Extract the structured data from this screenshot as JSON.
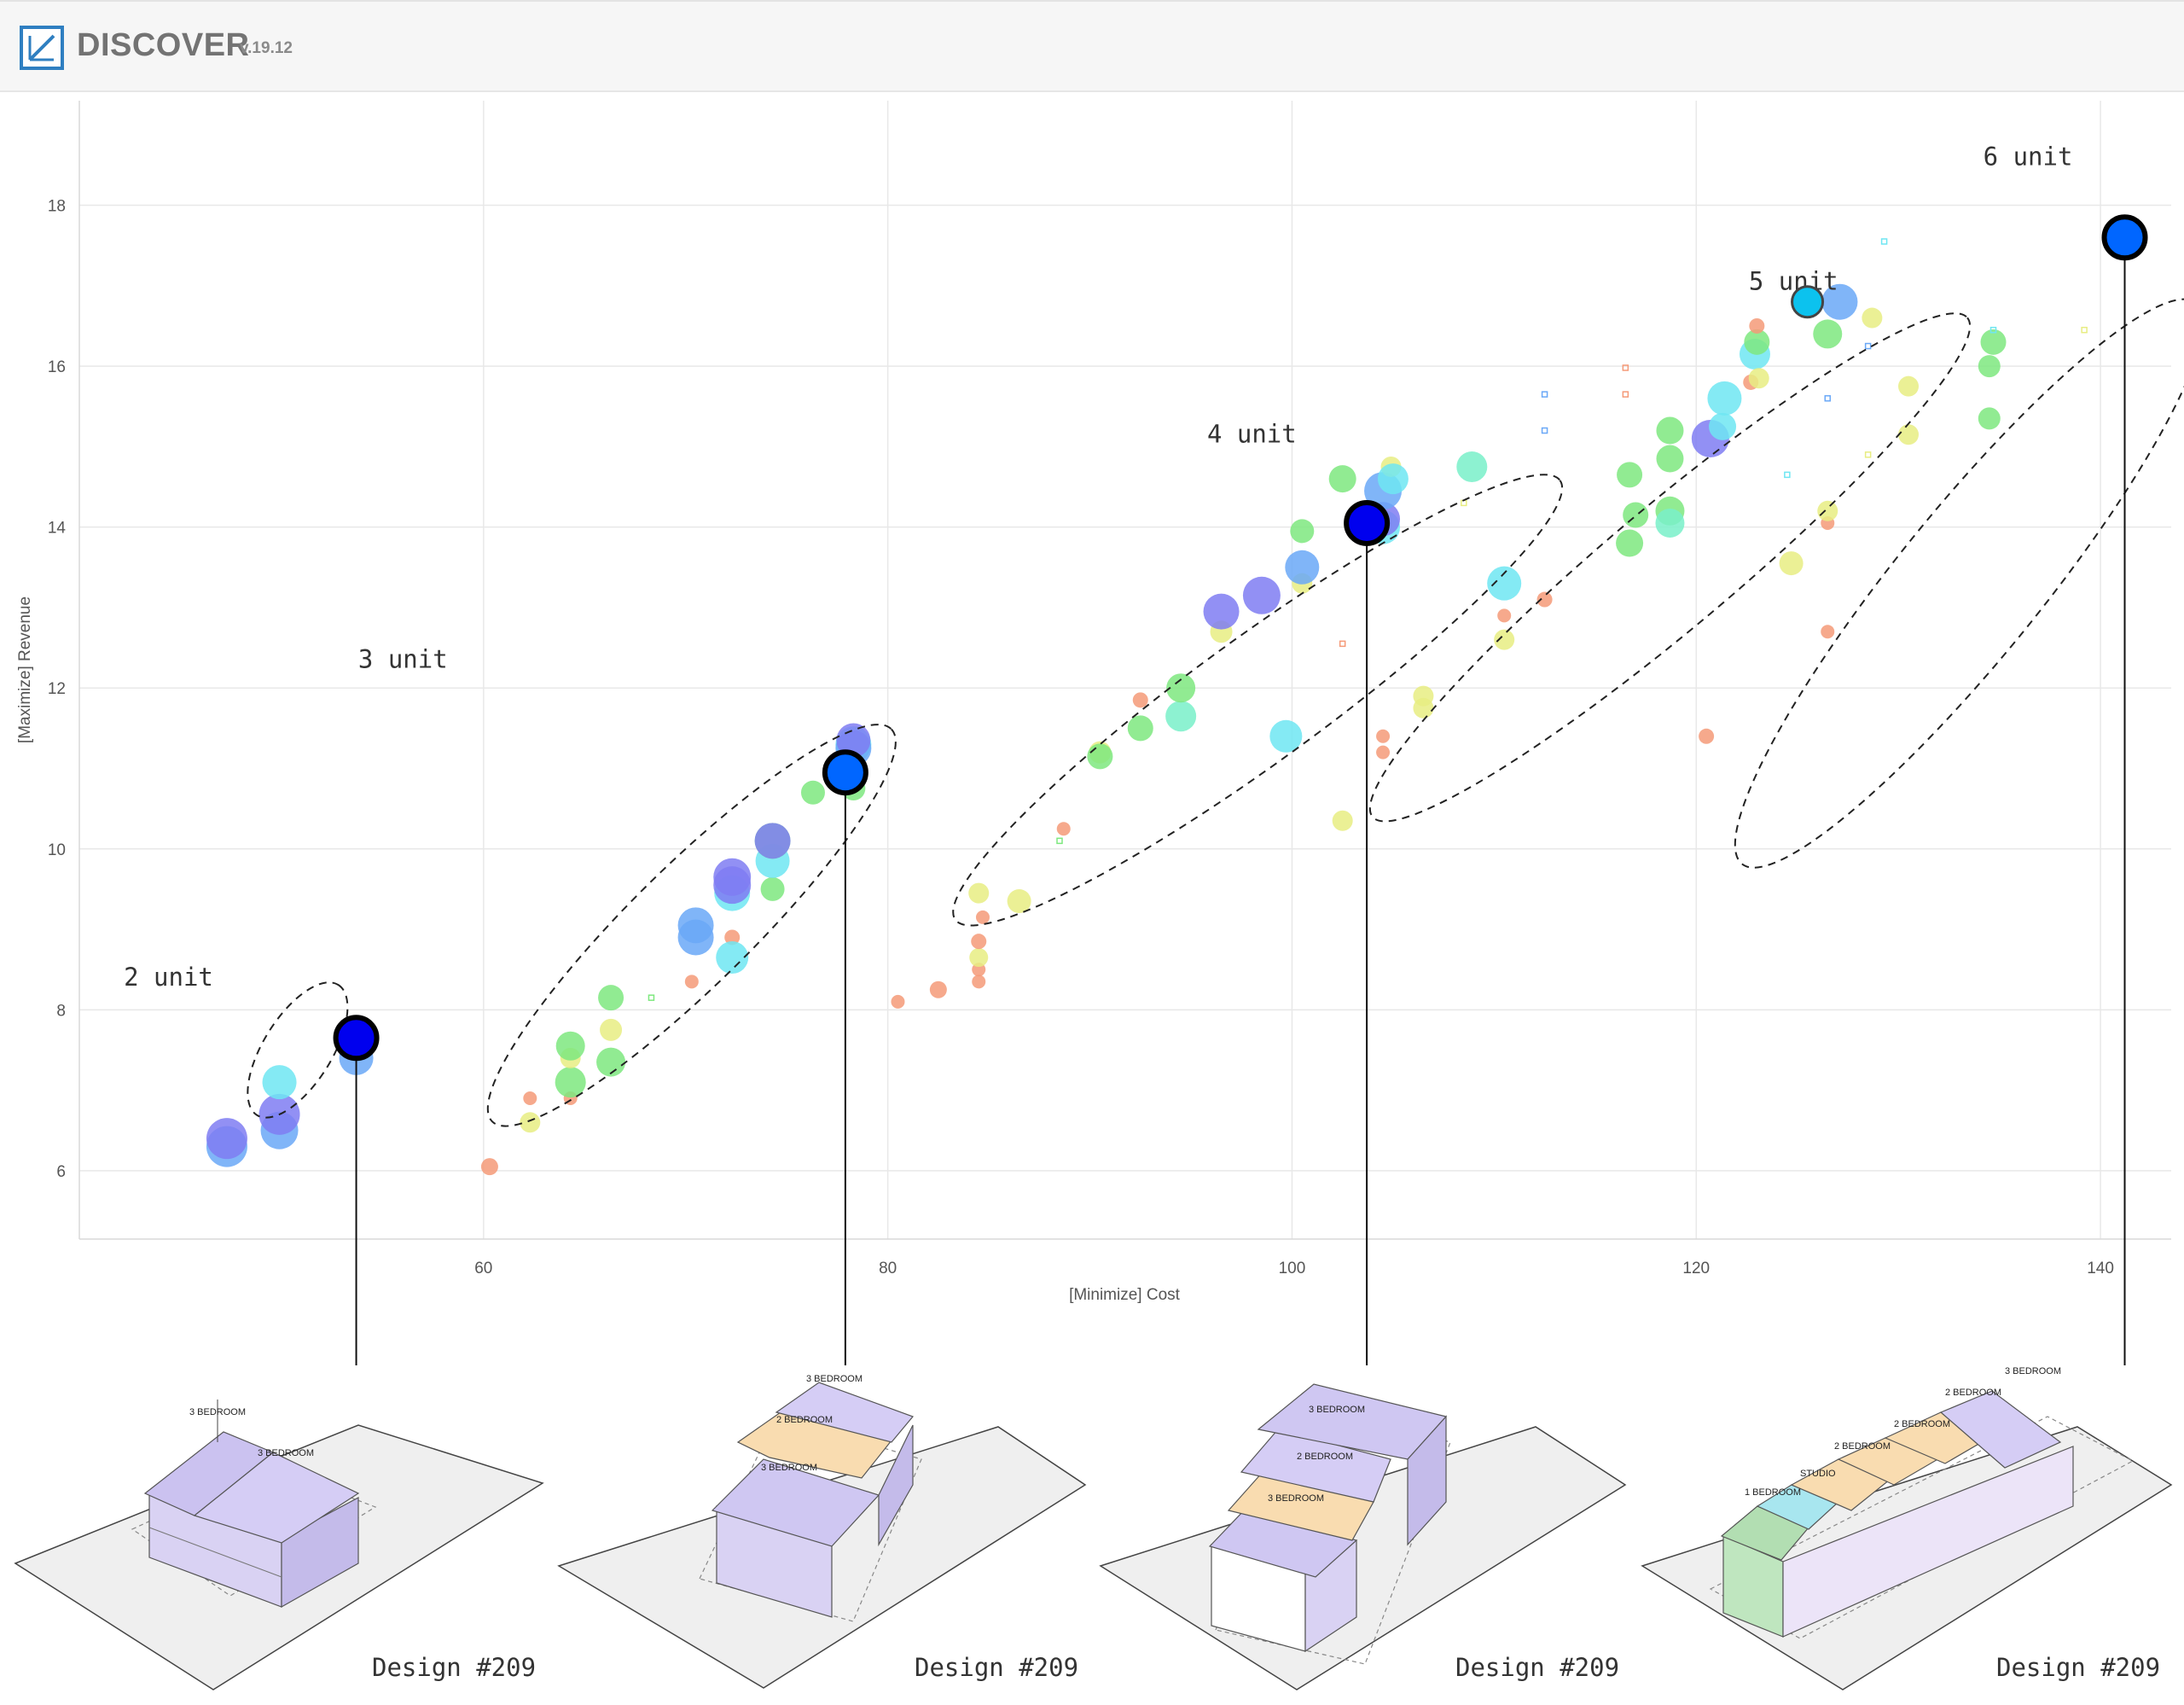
{
  "app": {
    "name": "DISCOVER",
    "version": "v.19.12"
  },
  "chart_data": {
    "type": "scatter",
    "title": "",
    "xlabel": "[Minimize] Cost",
    "ylabel": "[Maximize] Revenue",
    "xlim": [
      40,
      143.5
    ],
    "ylim": [
      5.15,
      19.3
    ],
    "x_ticks": [
      60,
      80,
      100,
      120,
      140
    ],
    "y_ticks": [
      6,
      8,
      10,
      12,
      14,
      16,
      18
    ],
    "grid": true,
    "colors": {
      "orange": "#f59a78",
      "yellow": "#e8ed82",
      "green": "#7ee87f",
      "mint": "#79f0c9",
      "cyan": "#6fe6f2",
      "blue": "#6aa8f7",
      "purple": "#7f7cf2",
      "selected_blue": "#0000ee",
      "selected_azure": "#0066ff",
      "selected_cyan": "#0cc2ee"
    },
    "points": [
      {
        "x": 47.3,
        "y": 6.3,
        "size": 24,
        "color": "blue"
      },
      {
        "x": 47.3,
        "y": 6.4,
        "size": 24,
        "color": "purple"
      },
      {
        "x": 49.9,
        "y": 6.5,
        "size": 22,
        "color": "blue"
      },
      {
        "x": 49.9,
        "y": 6.7,
        "size": 24,
        "color": "purple"
      },
      {
        "x": 49.9,
        "y": 7.1,
        "size": 20,
        "color": "cyan"
      },
      {
        "x": 53.7,
        "y": 7.4,
        "size": 20,
        "color": "blue"
      },
      {
        "x": 60.3,
        "y": 6.05,
        "size": 10,
        "color": "orange"
      },
      {
        "x": 62.3,
        "y": 6.6,
        "size": 12,
        "color": "yellow"
      },
      {
        "x": 62.3,
        "y": 6.9,
        "size": 8,
        "color": "orange"
      },
      {
        "x": 64.3,
        "y": 6.9,
        "size": 8,
        "color": "orange"
      },
      {
        "x": 64.3,
        "y": 7.1,
        "size": 18,
        "color": "green"
      },
      {
        "x": 64.3,
        "y": 7.4,
        "size": 12,
        "color": "yellow"
      },
      {
        "x": 64.3,
        "y": 7.55,
        "size": 17,
        "color": "green"
      },
      {
        "x": 66.3,
        "y": 7.35,
        "size": 17,
        "color": "green"
      },
      {
        "x": 66.3,
        "y": 7.75,
        "size": 13,
        "color": "yellow"
      },
      {
        "x": 66.3,
        "y": 8.15,
        "size": 15,
        "color": "green"
      },
      {
        "x": 68.3,
        "y": 8.15,
        "size": 6,
        "color": "green",
        "shape": "square"
      },
      {
        "x": 70.3,
        "y": 8.35,
        "size": 8,
        "color": "orange"
      },
      {
        "x": 70.5,
        "y": 8.9,
        "size": 21,
        "color": "blue"
      },
      {
        "x": 70.5,
        "y": 9.05,
        "size": 21,
        "color": "blue"
      },
      {
        "x": 72.3,
        "y": 8.9,
        "size": 9,
        "color": "orange"
      },
      {
        "x": 72.3,
        "y": 8.65,
        "size": 19,
        "color": "cyan"
      },
      {
        "x": 72.3,
        "y": 9.45,
        "size": 21,
        "color": "cyan"
      },
      {
        "x": 72.3,
        "y": 9.55,
        "size": 22,
        "color": "purple"
      },
      {
        "x": 72.3,
        "y": 9.65,
        "size": 22,
        "color": "purple"
      },
      {
        "x": 74.3,
        "y": 9.5,
        "size": 14,
        "color": "green"
      },
      {
        "x": 74.3,
        "y": 9.85,
        "size": 20,
        "color": "cyan"
      },
      {
        "x": 74.3,
        "y": 10.1,
        "size": 21,
        "color": "green"
      },
      {
        "x": 74.3,
        "y": 10.1,
        "size": 21,
        "color": "purple"
      },
      {
        "x": 76.3,
        "y": 10.7,
        "size": 14,
        "color": "green"
      },
      {
        "x": 78.3,
        "y": 10.75,
        "size": 14,
        "color": "green"
      },
      {
        "x": 78.3,
        "y": 11.3,
        "size": 21,
        "color": "cyan"
      },
      {
        "x": 78.3,
        "y": 11.25,
        "size": 21,
        "color": "blue"
      },
      {
        "x": 78.3,
        "y": 11.35,
        "size": 20,
        "color": "purple"
      },
      {
        "x": 80.5,
        "y": 8.1,
        "size": 8,
        "color": "orange"
      },
      {
        "x": 82.5,
        "y": 8.25,
        "size": 10,
        "color": "orange"
      },
      {
        "x": 84.5,
        "y": 8.35,
        "size": 8,
        "color": "orange"
      },
      {
        "x": 84.5,
        "y": 8.5,
        "size": 8,
        "color": "orange"
      },
      {
        "x": 84.5,
        "y": 8.65,
        "size": 11,
        "color": "yellow"
      },
      {
        "x": 84.5,
        "y": 8.85,
        "size": 9,
        "color": "orange"
      },
      {
        "x": 84.7,
        "y": 9.15,
        "size": 8,
        "color": "orange"
      },
      {
        "x": 84.5,
        "y": 9.45,
        "size": 12,
        "color": "yellow"
      },
      {
        "x": 86.5,
        "y": 9.35,
        "size": 14,
        "color": "yellow"
      },
      {
        "x": 88.5,
        "y": 10.1,
        "size": 6,
        "color": "green",
        "shape": "square"
      },
      {
        "x": 88.7,
        "y": 10.25,
        "size": 8,
        "color": "orange"
      },
      {
        "x": 90.5,
        "y": 11.2,
        "size": 13,
        "color": "yellow"
      },
      {
        "x": 90.5,
        "y": 11.15,
        "size": 15,
        "color": "green"
      },
      {
        "x": 92.5,
        "y": 11.5,
        "size": 15,
        "color": "green"
      },
      {
        "x": 92.5,
        "y": 11.85,
        "size": 9,
        "color": "orange"
      },
      {
        "x": 94.5,
        "y": 11.65,
        "size": 18,
        "color": "mint"
      },
      {
        "x": 94.5,
        "y": 12.0,
        "size": 17,
        "color": "green"
      },
      {
        "x": 96.5,
        "y": 12.7,
        "size": 13,
        "color": "yellow"
      },
      {
        "x": 96.5,
        "y": 12.95,
        "size": 21,
        "color": "purple"
      },
      {
        "x": 98.5,
        "y": 13.15,
        "size": 22,
        "color": "purple"
      },
      {
        "x": 99.7,
        "y": 11.4,
        "size": 19,
        "color": "cyan"
      },
      {
        "x": 100.5,
        "y": 13.3,
        "size": 12,
        "color": "yellow"
      },
      {
        "x": 100.5,
        "y": 13.5,
        "size": 20,
        "color": "blue"
      },
      {
        "x": 100.5,
        "y": 13.95,
        "size": 14,
        "color": "green"
      },
      {
        "x": 102.5,
        "y": 10.35,
        "size": 12,
        "color": "yellow"
      },
      {
        "x": 102.5,
        "y": 12.55,
        "size": 6,
        "color": "orange",
        "shape": "square"
      },
      {
        "x": 102.5,
        "y": 14.6,
        "size": 16,
        "color": "green"
      },
      {
        "x": 104.5,
        "y": 11.2,
        "size": 8,
        "color": "orange"
      },
      {
        "x": 104.5,
        "y": 11.4,
        "size": 8,
        "color": "orange"
      },
      {
        "x": 104.5,
        "y": 14.0,
        "size": 20,
        "color": "cyan"
      },
      {
        "x": 104.5,
        "y": 14.1,
        "size": 20,
        "color": "purple"
      },
      {
        "x": 104.5,
        "y": 14.45,
        "size": 22,
        "color": "blue"
      },
      {
        "x": 104.9,
        "y": 14.75,
        "size": 12,
        "color": "yellow"
      },
      {
        "x": 105.0,
        "y": 14.6,
        "size": 18,
        "color": "cyan"
      },
      {
        "x": 106.5,
        "y": 11.75,
        "size": 12,
        "color": "yellow"
      },
      {
        "x": 106.5,
        "y": 11.9,
        "size": 12,
        "color": "yellow"
      },
      {
        "x": 108.5,
        "y": 14.3,
        "size": 6,
        "color": "yellow",
        "shape": "square"
      },
      {
        "x": 108.9,
        "y": 14.75,
        "size": 18,
        "color": "mint"
      },
      {
        "x": 110.5,
        "y": 12.6,
        "size": 12,
        "color": "yellow"
      },
      {
        "x": 110.5,
        "y": 12.9,
        "size": 8,
        "color": "orange"
      },
      {
        "x": 110.5,
        "y": 13.3,
        "size": 20,
        "color": "cyan"
      },
      {
        "x": 112.5,
        "y": 13.1,
        "size": 9,
        "color": "orange"
      },
      {
        "x": 112.5,
        "y": 15.2,
        "size": 6,
        "color": "blue",
        "shape": "square"
      },
      {
        "x": 112.5,
        "y": 15.65,
        "size": 6,
        "color": "blue",
        "shape": "square"
      },
      {
        "x": 116.5,
        "y": 15.65,
        "size": 6,
        "color": "orange",
        "shape": "square"
      },
      {
        "x": 116.5,
        "y": 15.98,
        "size": 6,
        "color": "orange",
        "shape": "square"
      },
      {
        "x": 116.7,
        "y": 13.8,
        "size": 16,
        "color": "green"
      },
      {
        "x": 116.7,
        "y": 14.65,
        "size": 15,
        "color": "green"
      },
      {
        "x": 117.0,
        "y": 14.15,
        "size": 15,
        "color": "green"
      },
      {
        "x": 118.7,
        "y": 14.2,
        "size": 17,
        "color": "green"
      },
      {
        "x": 118.7,
        "y": 14.05,
        "size": 17,
        "color": "mint"
      },
      {
        "x": 118.7,
        "y": 14.85,
        "size": 16,
        "color": "green"
      },
      {
        "x": 118.7,
        "y": 15.2,
        "size": 16,
        "color": "green"
      },
      {
        "x": 120.5,
        "y": 11.4,
        "size": 9,
        "color": "orange"
      },
      {
        "x": 120.7,
        "y": 15.1,
        "size": 22,
        "color": "purple"
      },
      {
        "x": 121.3,
        "y": 15.25,
        "size": 16,
        "color": "cyan"
      },
      {
        "x": 121.4,
        "y": 15.6,
        "size": 20,
        "color": "cyan"
      },
      {
        "x": 122.7,
        "y": 15.8,
        "size": 9,
        "color": "orange"
      },
      {
        "x": 122.9,
        "y": 16.15,
        "size": 18,
        "color": "cyan"
      },
      {
        "x": 123.0,
        "y": 16.3,
        "size": 15,
        "color": "green"
      },
      {
        "x": 123.1,
        "y": 15.85,
        "size": 12,
        "color": "yellow"
      },
      {
        "x": 123.0,
        "y": 16.5,
        "size": 9,
        "color": "orange"
      },
      {
        "x": 124.5,
        "y": 14.65,
        "size": 6,
        "color": "cyan",
        "shape": "square"
      },
      {
        "x": 124.7,
        "y": 13.55,
        "size": 14,
        "color": "yellow"
      },
      {
        "x": 126.5,
        "y": 12.7,
        "size": 8,
        "color": "orange"
      },
      {
        "x": 126.5,
        "y": 14.05,
        "size": 8,
        "color": "orange"
      },
      {
        "x": 126.5,
        "y": 14.2,
        "size": 12,
        "color": "yellow"
      },
      {
        "x": 126.5,
        "y": 15.6,
        "size": 6,
        "color": "blue",
        "shape": "square"
      },
      {
        "x": 126.5,
        "y": 16.4,
        "size": 17,
        "color": "green"
      },
      {
        "x": 127.1,
        "y": 16.8,
        "size": 21,
        "color": "blue"
      },
      {
        "x": 128.5,
        "y": 14.9,
        "size": 6,
        "color": "yellow",
        "shape": "square"
      },
      {
        "x": 128.5,
        "y": 16.25,
        "size": 6,
        "color": "blue",
        "shape": "square"
      },
      {
        "x": 128.7,
        "y": 16.6,
        "size": 12,
        "color": "yellow"
      },
      {
        "x": 129.3,
        "y": 17.55,
        "size": 6,
        "color": "cyan",
        "shape": "square"
      },
      {
        "x": 130.5,
        "y": 15.15,
        "size": 12,
        "color": "yellow"
      },
      {
        "x": 130.5,
        "y": 15.75,
        "size": 12,
        "color": "yellow"
      },
      {
        "x": 134.5,
        "y": 15.35,
        "size": 13,
        "color": "green"
      },
      {
        "x": 134.5,
        "y": 16.0,
        "size": 13,
        "color": "green"
      },
      {
        "x": 134.7,
        "y": 16.3,
        "size": 15,
        "color": "green"
      },
      {
        "x": 134.7,
        "y": 16.45,
        "size": 6,
        "color": "cyan",
        "shape": "square"
      },
      {
        "x": 139.2,
        "y": 16.45,
        "size": 6,
        "color": "yellow",
        "shape": "square"
      }
    ],
    "selected_points": [
      {
        "x": 53.7,
        "y": 7.65,
        "color": "selected_blue",
        "design": "Design #209"
      },
      {
        "x": 77.9,
        "y": 10.95,
        "color": "selected_azure",
        "design": "Design #209"
      },
      {
        "x": 103.7,
        "y": 14.05,
        "color": "selected_blue",
        "design": "Design #209"
      },
      {
        "x": 141.2,
        "y": 17.6,
        "color": "selected_azure",
        "design": "Design #209"
      },
      {
        "x": 125.5,
        "y": 16.8,
        "color": "selected_cyan",
        "small": true
      }
    ],
    "clusters": [
      {
        "label": "2 unit",
        "cx": 50.8,
        "cy": 7.5,
        "rx": 90,
        "ry": 40,
        "angle": -58,
        "label_x": 42.2,
        "label_y": 8.3
      },
      {
        "label": "3 unit",
        "cx": 70.3,
        "cy": 9.05,
        "rx": 328,
        "ry": 70,
        "angle": -44.5,
        "label_x": 53.8,
        "label_y": 12.25
      },
      {
        "label": "4 unit",
        "cx": 98.3,
        "cy": 11.85,
        "rx": 438,
        "ry": 73,
        "angle": -36,
        "label_x": 95.8,
        "label_y": 15.05
      },
      {
        "label": "5 unit",
        "cx": 118.7,
        "cy": 13.5,
        "rx": 455,
        "ry": 72,
        "angle": -40,
        "label_x": 122.6,
        "label_y": 16.95
      },
      {
        "label": "6 unit",
        "cx": 133.5,
        "cy": 13.3,
        "rx": 423,
        "ry": 85,
        "angle": -51,
        "label_x": 134.2,
        "label_y": 18.5
      }
    ]
  },
  "designs": [
    {
      "label": "Design #209",
      "bedrooms": [
        "3 BEDROOM",
        "3 BEDROOM"
      ]
    },
    {
      "label": "Design #209",
      "bedrooms": [
        "3 BEDROOM",
        "2 BEDROOM",
        "3 BEDROOM"
      ]
    },
    {
      "label": "Design #209",
      "bedrooms": [
        "3 BEDROOM",
        "2 BEDROOM",
        "3 BEDROOM"
      ]
    },
    {
      "label": "Design #209",
      "bedrooms": [
        "3 BEDROOM",
        "2 BEDROOM",
        "2 BEDROOM",
        "2 BEDROOM",
        "STUDIO",
        "1 BEDROOM"
      ]
    }
  ]
}
